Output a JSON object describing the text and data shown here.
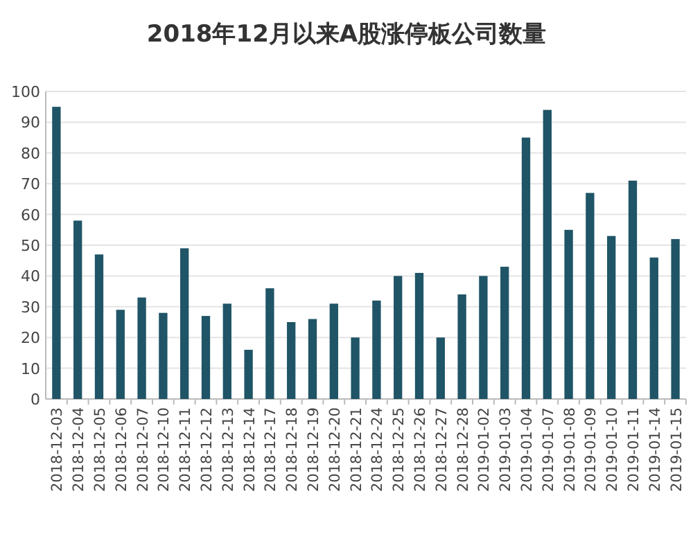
{
  "chart_data": {
    "type": "bar",
    "title": "2018年12月以来A股涨停板公司数量",
    "categories": [
      "2018-12-03",
      "2018-12-04",
      "2018-12-05",
      "2018-12-06",
      "2018-12-07",
      "2018-12-10",
      "2018-12-11",
      "2018-12-12",
      "2018-12-13",
      "2018-12-14",
      "2018-12-17",
      "2018-12-18",
      "2018-12-19",
      "2018-12-20",
      "2018-12-21",
      "2018-12-24",
      "2018-12-25",
      "2018-12-26",
      "2018-12-27",
      "2018-12-28",
      "2019-01-02",
      "2019-01-03",
      "2019-01-04",
      "2019-01-07",
      "2019-01-08",
      "2019-01-09",
      "2019-01-10",
      "2019-01-11",
      "2019-01-14",
      "2019-01-15"
    ],
    "values": [
      95,
      58,
      47,
      29,
      33,
      28,
      49,
      27,
      31,
      16,
      36,
      25,
      26,
      31,
      20,
      32,
      40,
      41,
      20,
      34,
      40,
      43,
      85,
      94,
      55,
      67,
      53,
      71,
      46,
      52
    ],
    "color": "#1f5566",
    "ylim": [
      0,
      100
    ],
    "yticks": [
      0,
      10,
      20,
      30,
      40,
      50,
      60,
      70,
      80,
      90,
      100
    ],
    "grid": "y"
  }
}
